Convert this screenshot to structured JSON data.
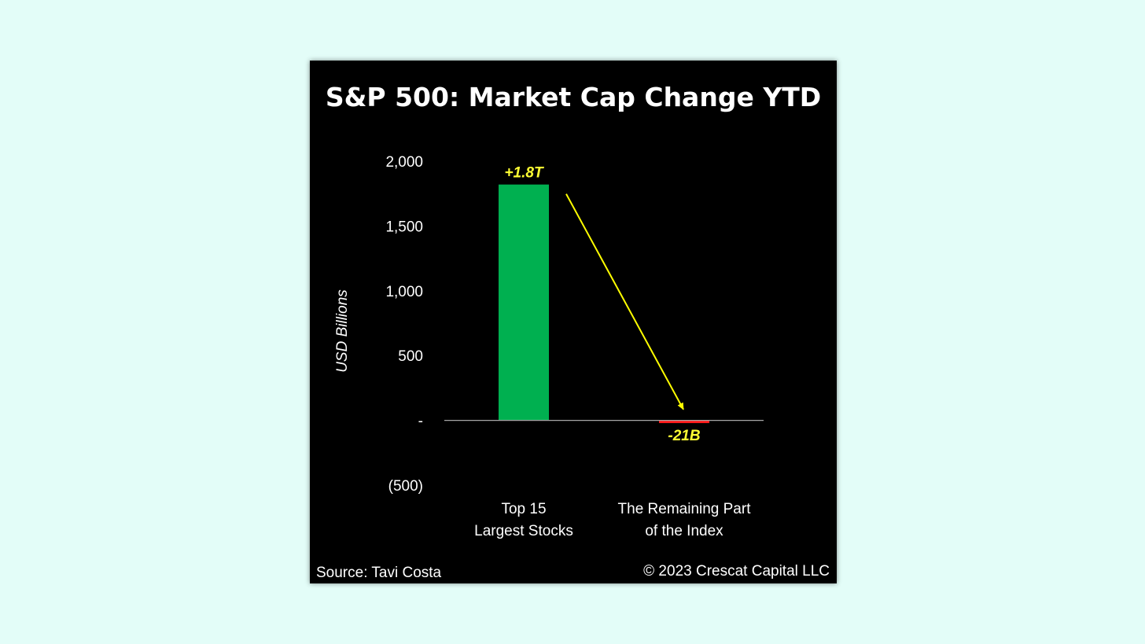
{
  "colors": {
    "page_background": "#e3fdf8",
    "panel_background": "#000000",
    "text": "#ffffff",
    "positive_bar": "#00b050",
    "negative_bar": "#ff1a1a",
    "data_label": "#ffff33",
    "arrow": "#ffff00",
    "axis_line": "#a6a6a6"
  },
  "chart_data": {
    "type": "bar",
    "title": "S&P 500: Market Cap Change YTD",
    "ylabel": "USD Billions",
    "ylim": [
      -500,
      2000
    ],
    "yticks": [
      -500,
      0,
      500,
      1000,
      1500,
      2000
    ],
    "ytick_labels": [
      "(500)",
      "-",
      "500",
      "1,000",
      "1,500",
      "2,000"
    ],
    "grid": false,
    "categories": [
      [
        "Top 15",
        "Largest Stocks"
      ],
      [
        "The Remaining Part",
        "of the Index"
      ]
    ],
    "values": [
      1820,
      -21
    ],
    "data_labels": [
      "+1.8T",
      "-21B"
    ],
    "annotations": [
      {
        "type": "arrow",
        "from_category": 0,
        "to_category": 1
      }
    ]
  },
  "footer": {
    "source": "Source: Tavi Costa",
    "copyright": "© 2023 Crescat Capital LLC"
  }
}
